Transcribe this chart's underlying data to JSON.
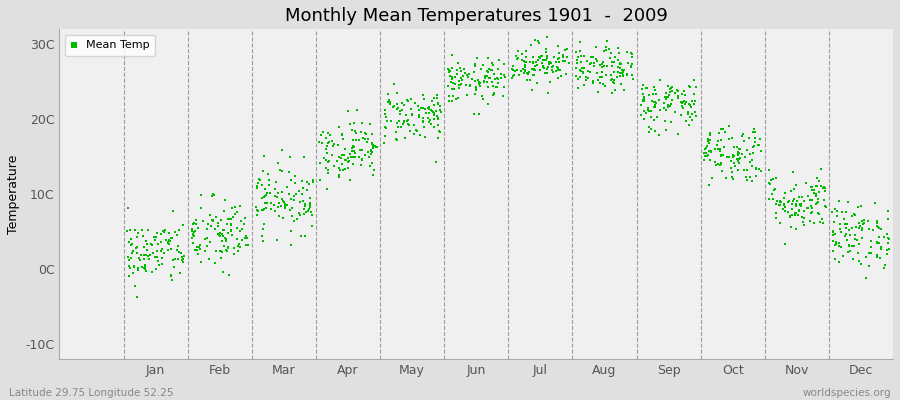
{
  "title": "Monthly Mean Temperatures 1901  -  2009",
  "ylabel": "Temperature",
  "xlabel_months": [
    "Jan",
    "Feb",
    "Mar",
    "Apr",
    "May",
    "Jun",
    "Jul",
    "Aug",
    "Sep",
    "Oct",
    "Nov",
    "Dec"
  ],
  "footer_left": "Latitude 29.75 Longitude 52.25",
  "footer_right": "worldspecies.org",
  "yticks": [
    -10,
    0,
    10,
    20,
    30
  ],
  "ytick_labels": [
    "-10C",
    "0C",
    "10C",
    "20C",
    "30C"
  ],
  "ylim": [
    -12,
    32
  ],
  "xlim": [
    0,
    13
  ],
  "dot_color": "#00BB00",
  "dot_size": 2.5,
  "legend_label": "Mean Temp",
  "outer_bg": "#E0E0E0",
  "plot_bg": "#F0F0F0",
  "monthly_means": [
    2.2,
    4.5,
    9.5,
    16.0,
    20.5,
    25.0,
    27.5,
    26.5,
    22.0,
    15.5,
    9.0,
    4.5
  ],
  "monthly_stds": [
    2.2,
    2.5,
    2.3,
    2.0,
    1.8,
    1.5,
    1.4,
    1.5,
    1.8,
    2.0,
    2.0,
    2.2
  ],
  "n_years": 109,
  "seed": 42,
  "vline_positions": [
    1,
    2,
    3,
    4,
    5,
    6,
    7,
    8,
    9,
    10,
    11,
    12,
    13
  ]
}
